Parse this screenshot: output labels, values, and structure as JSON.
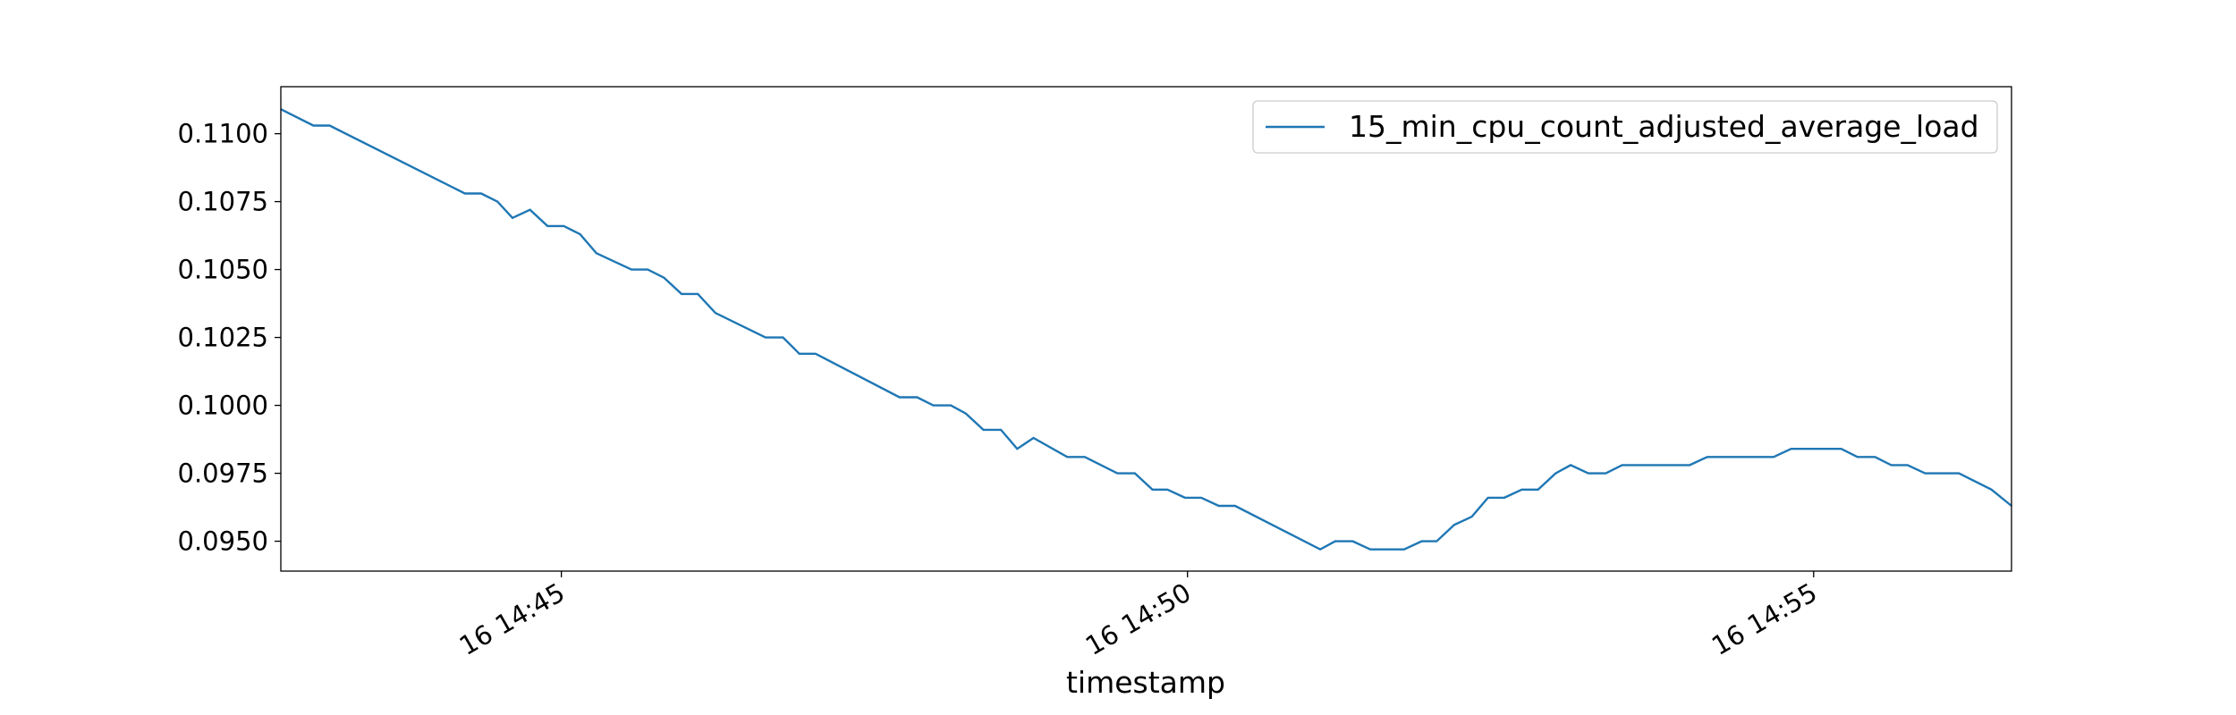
{
  "chart_data": {
    "type": "line",
    "x_label": "timestamp",
    "x": [
      42.76,
      43.02,
      43.15,
      44.23,
      44.36,
      44.49,
      44.61,
      44.75,
      44.89,
      45.02,
      45.15,
      45.28,
      45.56,
      45.69,
      45.82,
      45.96,
      46.09,
      46.23,
      46.63,
      46.77,
      46.9,
      47.03,
      47.7,
      47.84,
      47.97,
      48.11,
      48.23,
      48.37,
      48.51,
      48.64,
      48.77,
      49.04,
      49.18,
      49.44,
      49.58,
      49.72,
      49.84,
      49.98,
      50.11,
      50.25,
      50.38,
      51.06,
      51.18,
      51.32,
      51.46,
      51.73,
      51.87,
      51.99,
      52.13,
      52.27,
      52.4,
      52.53,
      52.67,
      52.8,
      52.94,
      53.06,
      53.2,
      53.34,
      53.47,
      54.01,
      54.15,
      54.68,
      54.82,
      55.22,
      55.35,
      55.49,
      55.62,
      55.75,
      55.89,
      56.16,
      56.42,
      56.58
    ],
    "series": [
      {
        "name": "15_min_cpu_count_adjusted_average_load",
        "color": "#1f77b4",
        "values": [
          0.1109,
          0.1103,
          0.1103,
          0.1078,
          0.1078,
          0.1075,
          0.1069,
          0.1072,
          0.1066,
          0.1066,
          0.1063,
          0.1056,
          0.105,
          0.105,
          0.1047,
          0.1041,
          0.1041,
          0.1034,
          0.1025,
          0.1025,
          0.1019,
          0.1019,
          0.1003,
          0.1003,
          0.1,
          0.1,
          0.0997,
          0.0991,
          0.0991,
          0.0984,
          0.0988,
          0.0981,
          0.0981,
          0.0975,
          0.0975,
          0.0969,
          0.0969,
          0.0966,
          0.0966,
          0.0963,
          0.0963,
          0.0947,
          0.095,
          0.095,
          0.0947,
          0.0947,
          0.095,
          0.095,
          0.0956,
          0.0959,
          0.0966,
          0.0966,
          0.0969,
          0.0969,
          0.0975,
          0.0978,
          0.0975,
          0.0975,
          0.0978,
          0.0978,
          0.0981,
          0.0981,
          0.0984,
          0.0984,
          0.0981,
          0.0981,
          0.0978,
          0.0978,
          0.0975,
          0.0975,
          0.0969,
          0.0963
        ]
      }
    ],
    "xlim": [
      42.76,
      56.58
    ],
    "xticks": [
      {
        "value": 45,
        "label": "16 14:45"
      },
      {
        "value": 50,
        "label": "16 14:50"
      },
      {
        "value": 55,
        "label": "16 14:55"
      }
    ],
    "ylim": [
      0.0939,
      0.11173
    ],
    "yticks": [
      {
        "value": 0.095,
        "label": "0.0950"
      },
      {
        "value": 0.0975,
        "label": "0.0975"
      },
      {
        "value": 0.1,
        "label": "0.1000"
      },
      {
        "value": 0.1025,
        "label": "0.1025"
      },
      {
        "value": 0.105,
        "label": "0.1050"
      },
      {
        "value": 0.1075,
        "label": "0.1075"
      },
      {
        "value": 0.11,
        "label": "0.1100"
      }
    ],
    "legend": "upper right"
  }
}
